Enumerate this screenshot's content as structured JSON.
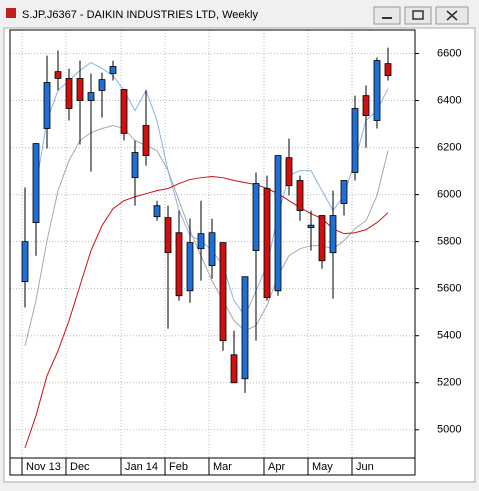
{
  "chart_data": {
    "type": "candlestick",
    "title": "S.JP.J6367 - DAIKIN INDUSTRIES LTD, Weekly",
    "categories": [
      "Nov 13",
      null,
      null,
      null,
      "Dec",
      null,
      null,
      null,
      null,
      "Jan 14",
      null,
      null,
      null,
      "Feb",
      null,
      null,
      null,
      "Mar",
      null,
      null,
      null,
      null,
      "Apr",
      null,
      null,
      null,
      "May",
      null,
      null,
      null,
      "Jun",
      null,
      null,
      null
    ],
    "open": [
      5630,
      5881,
      6281,
      6523,
      6494,
      6494,
      6400,
      6443,
      6515,
      6447,
      6072,
      6294,
      5906,
      5902,
      5838,
      5591,
      5770,
      5698,
      5796,
      5319,
      5217,
      5762,
      6026,
      5591,
      6157,
      6060,
      5860,
      5911,
      5753,
      5962,
      6094,
      6421,
      6315,
      6557
    ],
    "high": [
      6030,
      6220,
      6591,
      6613,
      6536,
      6570,
      6515,
      6519,
      6570,
      6447,
      6230,
      6443,
      5974,
      5953,
      5932,
      5898,
      5974,
      5898,
      5796,
      5421,
      5651,
      6094,
      6081,
      6166,
      6238,
      6081,
      5932,
      5911,
      6017,
      6060,
      6421,
      6464,
      6583,
      6625
    ],
    "low": [
      5520,
      5740,
      6196,
      6443,
      6315,
      6213,
      6098,
      6328,
      6485,
      6230,
      5953,
      6123,
      5889,
      5430,
      5549,
      5540,
      5634,
      5643,
      5336,
      5200,
      5157,
      5379,
      5549,
      5570,
      5996,
      5889,
      5762,
      5685,
      5557,
      5911,
      6060,
      6200,
      6281,
      6485
    ],
    "close": [
      5800,
      6217,
      6477,
      6494,
      6366,
      6400,
      6434,
      6489,
      6545,
      6260,
      6179,
      6166,
      5953,
      5753,
      5570,
      5796,
      5834,
      5838,
      5379,
      5200,
      5651,
      6047,
      5562,
      6166,
      6038,
      5932,
      5870,
      5719,
      5911,
      6060,
      6366,
      6336,
      6570,
      6506
    ],
    "up_color": "#1f6fd6",
    "down_color": "#d01010",
    "overlays": [
      {
        "color": "#8ab4e8",
        "values": [
          null,
          6038,
          6315,
          6443,
          6485,
          6528,
          6562,
          6536,
          6506,
          6443,
          6357,
          6443,
          6315,
          6102,
          5932,
          5826,
          5804,
          5762,
          5698,
          5549,
          5485,
          5591,
          5698,
          5911,
          6081,
          6102,
          6102,
          6017,
          5932,
          5996,
          6145,
          6315,
          6357,
          6451
        ]
      },
      {
        "color": "#a8a8a8",
        "values": [
          5357,
          5549,
          5804,
          6017,
          6145,
          6230,
          6264,
          6281,
          6294,
          6281,
          6230,
          6209,
          6187,
          6102,
          5974,
          5847,
          5740,
          5634,
          5549,
          5464,
          5421,
          5443,
          5528,
          5655,
          5740,
          5770,
          5783,
          5783,
          5770,
          5804,
          5855,
          5889,
          5996,
          6187
        ]
      },
      {
        "color": "#d01010",
        "values": [
          4923,
          5060,
          5230,
          5336,
          5464,
          5613,
          5762,
          5868,
          5940,
          5974,
          5991,
          6004,
          6017,
          6026,
          6047,
          6064,
          6072,
          6077,
          6072,
          6060,
          6051,
          6043,
          6026,
          6004,
          5974,
          5945,
          5919,
          5898,
          5855,
          5834,
          5838,
          5851,
          5881,
          5923
        ]
      }
    ],
    "ylim": [
      4880,
      6700
    ],
    "yticks": [
      5000,
      5200,
      5400,
      5600,
      5800,
      6000,
      6200,
      6400,
      6600
    ],
    "grid": true
  }
}
